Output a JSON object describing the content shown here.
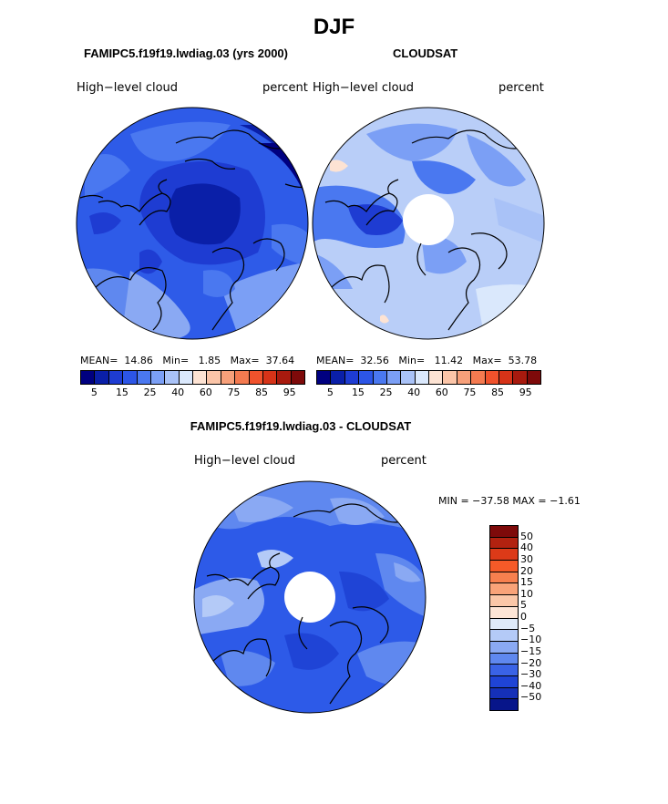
{
  "title": "DJF",
  "panels": {
    "model": {
      "header": "FAMIPC5.f19f19.lwdiag.03 (yrs 2000)",
      "variable": "High−level cloud",
      "units": "percent",
      "stats": {
        "mean_label": "MEAN=",
        "mean": "14.86",
        "min_label": "Min=",
        "min": "1.85",
        "max_label": "Max=",
        "max": "37.64"
      }
    },
    "obs": {
      "header": "CLOUDSAT",
      "variable": "High−level cloud",
      "units": "percent",
      "stats": {
        "mean_label": "MEAN=",
        "mean": "32.56",
        "min_label": "Min=",
        "min": "11.42",
        "max_label": "Max=",
        "max": "53.78"
      }
    },
    "diff": {
      "header": "FAMIPC5.f19f19.lwdiag.03 - CLOUDSAT",
      "variable": "High−level cloud",
      "units": "percent",
      "minmax": "MIN = −37.58 MAX =  −1.61"
    }
  },
  "colorbar_top": {
    "colors": [
      "#000080",
      "#0a1fa8",
      "#1e3cd2",
      "#2c55e6",
      "#4a78f0",
      "#7b9ff5",
      "#a9c2f7",
      "#dae8fc",
      "#fde3d3",
      "#fbc5a8",
      "#f7a07a",
      "#f47a50",
      "#f0522c",
      "#d63318",
      "#a81a0e",
      "#7e0a0a"
    ],
    "ticks": [
      "5",
      "15",
      "25",
      "40",
      "60",
      "75",
      "85",
      "95"
    ]
  },
  "colorbar_diff": {
    "colors": [
      "#7e0a0a",
      "#b22210",
      "#dc3a18",
      "#f55a28",
      "#f7804f",
      "#f9a379",
      "#fbc7a8",
      "#fde5d6",
      "#dfeaf9",
      "#b4caf7",
      "#8aa9f3",
      "#5f88ef",
      "#3a63e6",
      "#1f44d6",
      "#1530b8",
      "#07158a"
    ],
    "ticks": [
      "50",
      "40",
      "30",
      "20",
      "15",
      "10",
      "5",
      "0",
      "−5",
      "−10",
      "−15",
      "−20",
      "−30",
      "−40",
      "−50"
    ]
  },
  "map_colors": {
    "modelBase": "#2e5be8",
    "obsBase": "#b9cef8",
    "diffBase": "#2d5ae8"
  }
}
